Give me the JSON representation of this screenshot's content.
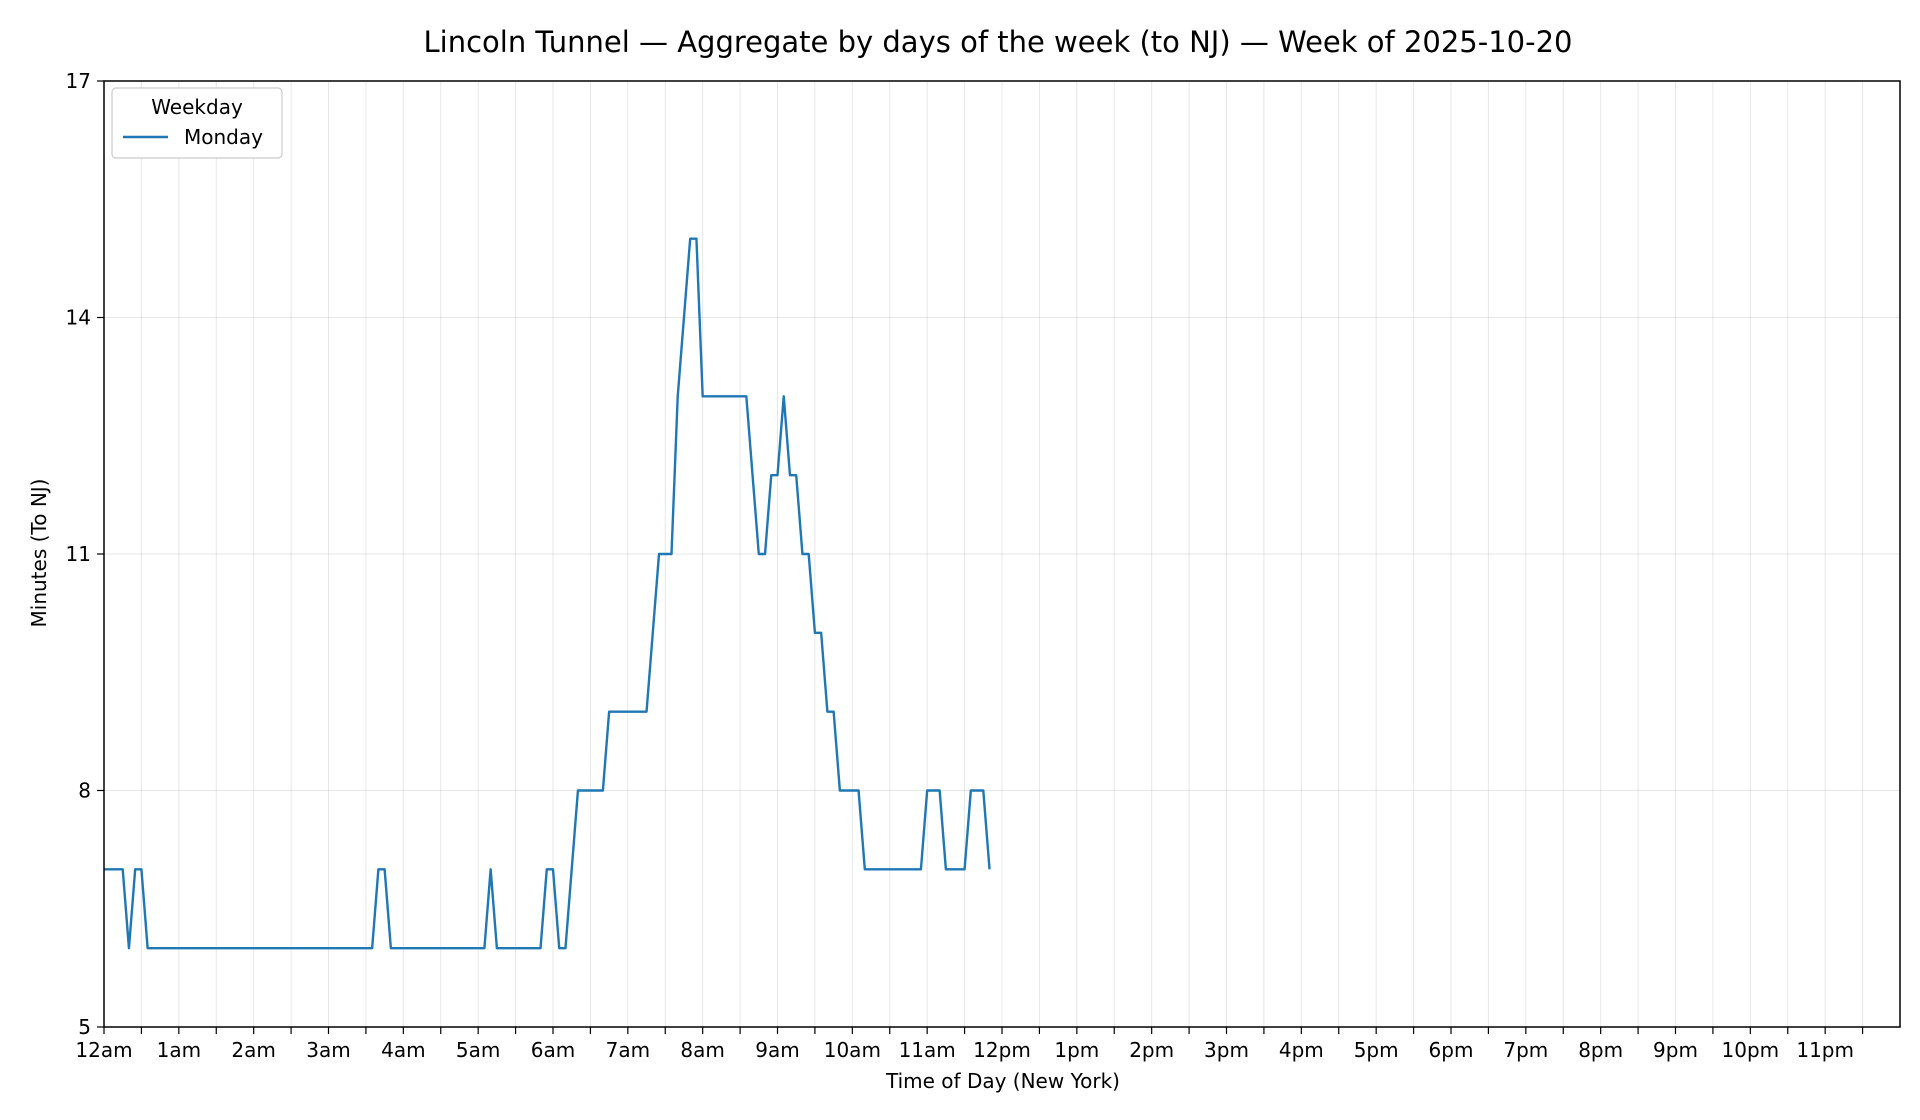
{
  "chart_data": {
    "type": "line",
    "title": "Lincoln Tunnel — Aggregate by days of the week (to NJ) — Week of 2025-10-20",
    "xlabel": "Time of Day (New York)",
    "ylabel": "Minutes (To NJ)",
    "xlim_minutes": [
      0,
      1440
    ],
    "ylim": [
      5,
      17
    ],
    "y_ticks": [
      5,
      8,
      11,
      14,
      17
    ],
    "x_tick_labels": [
      "12am",
      "1am",
      "2am",
      "3am",
      "4am",
      "5am",
      "6am",
      "7am",
      "8am",
      "9am",
      "10am",
      "11am",
      "12pm",
      "1pm",
      "2pm",
      "3pm",
      "4pm",
      "5pm",
      "6pm",
      "7pm",
      "8pm",
      "9pm",
      "10pm",
      "11pm"
    ],
    "x_tick_minutes": [
      0,
      60,
      120,
      180,
      240,
      300,
      360,
      420,
      480,
      540,
      600,
      660,
      720,
      780,
      840,
      900,
      960,
      1020,
      1080,
      1140,
      1200,
      1260,
      1320,
      1380
    ],
    "x_minor_tick_minutes": [
      30,
      90,
      150,
      210,
      270,
      330,
      390,
      450,
      510,
      570,
      630,
      690,
      750,
      810,
      870,
      930,
      990,
      1050,
      1110,
      1170,
      1230,
      1290,
      1350,
      1410
    ],
    "grid": true,
    "legend": {
      "title": "Weekday",
      "placement": "top-left"
    },
    "series": [
      {
        "name": "Monday",
        "color": "#1f77b4",
        "points": [
          [
            0,
            7
          ],
          [
            15,
            7
          ],
          [
            20,
            6
          ],
          [
            25,
            7
          ],
          [
            30,
            7
          ],
          [
            35,
            6
          ],
          [
            215,
            6
          ],
          [
            220,
            7
          ],
          [
            225,
            7
          ],
          [
            230,
            6
          ],
          [
            305,
            6
          ],
          [
            310,
            7
          ],
          [
            315,
            6
          ],
          [
            350,
            6
          ],
          [
            355,
            7
          ],
          [
            360,
            7
          ],
          [
            365,
            6
          ],
          [
            370,
            6
          ],
          [
            380,
            8
          ],
          [
            400,
            8
          ],
          [
            405,
            9
          ],
          [
            435,
            9
          ],
          [
            445,
            11
          ],
          [
            455,
            11
          ],
          [
            460,
            13
          ],
          [
            470,
            15
          ],
          [
            475,
            15
          ],
          [
            480,
            13
          ],
          [
            515,
            13
          ],
          [
            525,
            11
          ],
          [
            530,
            11
          ],
          [
            535,
            12
          ],
          [
            540,
            12
          ],
          [
            545,
            13
          ],
          [
            550,
            12
          ],
          [
            555,
            12
          ],
          [
            560,
            11
          ],
          [
            565,
            11
          ],
          [
            570,
            10
          ],
          [
            575,
            10
          ],
          [
            580,
            9
          ],
          [
            585,
            9
          ],
          [
            590,
            8
          ],
          [
            605,
            8
          ],
          [
            610,
            7
          ],
          [
            655,
            7
          ],
          [
            660,
            8
          ],
          [
            670,
            8
          ],
          [
            675,
            7
          ],
          [
            690,
            7
          ],
          [
            695,
            8
          ],
          [
            705,
            8
          ],
          [
            710,
            7
          ]
        ]
      }
    ]
  }
}
